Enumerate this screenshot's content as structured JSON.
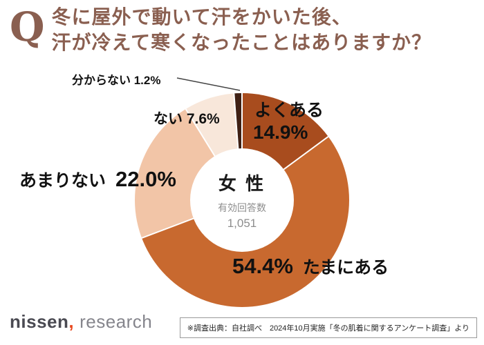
{
  "title": {
    "q": "Q",
    "line1": "冬に屋外で動いて汗をかいた後、",
    "line2": "汗が冷えて寒くなったことはありますか？"
  },
  "center": {
    "group": "女 性",
    "label": "有効回答数",
    "count": "1,051"
  },
  "chart_data": {
    "type": "pie",
    "donut": true,
    "start_angle_deg": 0,
    "direction": "clockwise",
    "title": "冬に屋外で動いて汗をかいた後、汗が冷えて寒くなったことはありますか？",
    "categories": [
      "よくある",
      "たまにある",
      "あまりない",
      "ない",
      "分からない"
    ],
    "values": [
      14.9,
      54.4,
      22.0,
      7.6,
      1.2
    ],
    "unit": "%",
    "colors": [
      "#a84c1e",
      "#c8692f",
      "#f2c5a7",
      "#f8e7da",
      "#3f2014"
    ],
    "center_text": [
      "女 性",
      "有効回答数",
      "1,051"
    ]
  },
  "labels": {
    "wakaranai": "分からない 1.2%",
    "nai": "ない 7.6%",
    "yokuaru": "よくある",
    "yokuaru_pct": "14.9%",
    "amarinai": "あまりない",
    "amarinai_pct": "22.0%",
    "tamaniaru_pct": "54.4%",
    "tamaniaru": "たまにある"
  },
  "footer": {
    "logo_nissen": "nissen",
    "logo_comma": ",",
    "logo_research": "research",
    "source": "※調査出典：自社調べ　2024年10月実施「冬の肌着に関するアンケート調査」より"
  }
}
